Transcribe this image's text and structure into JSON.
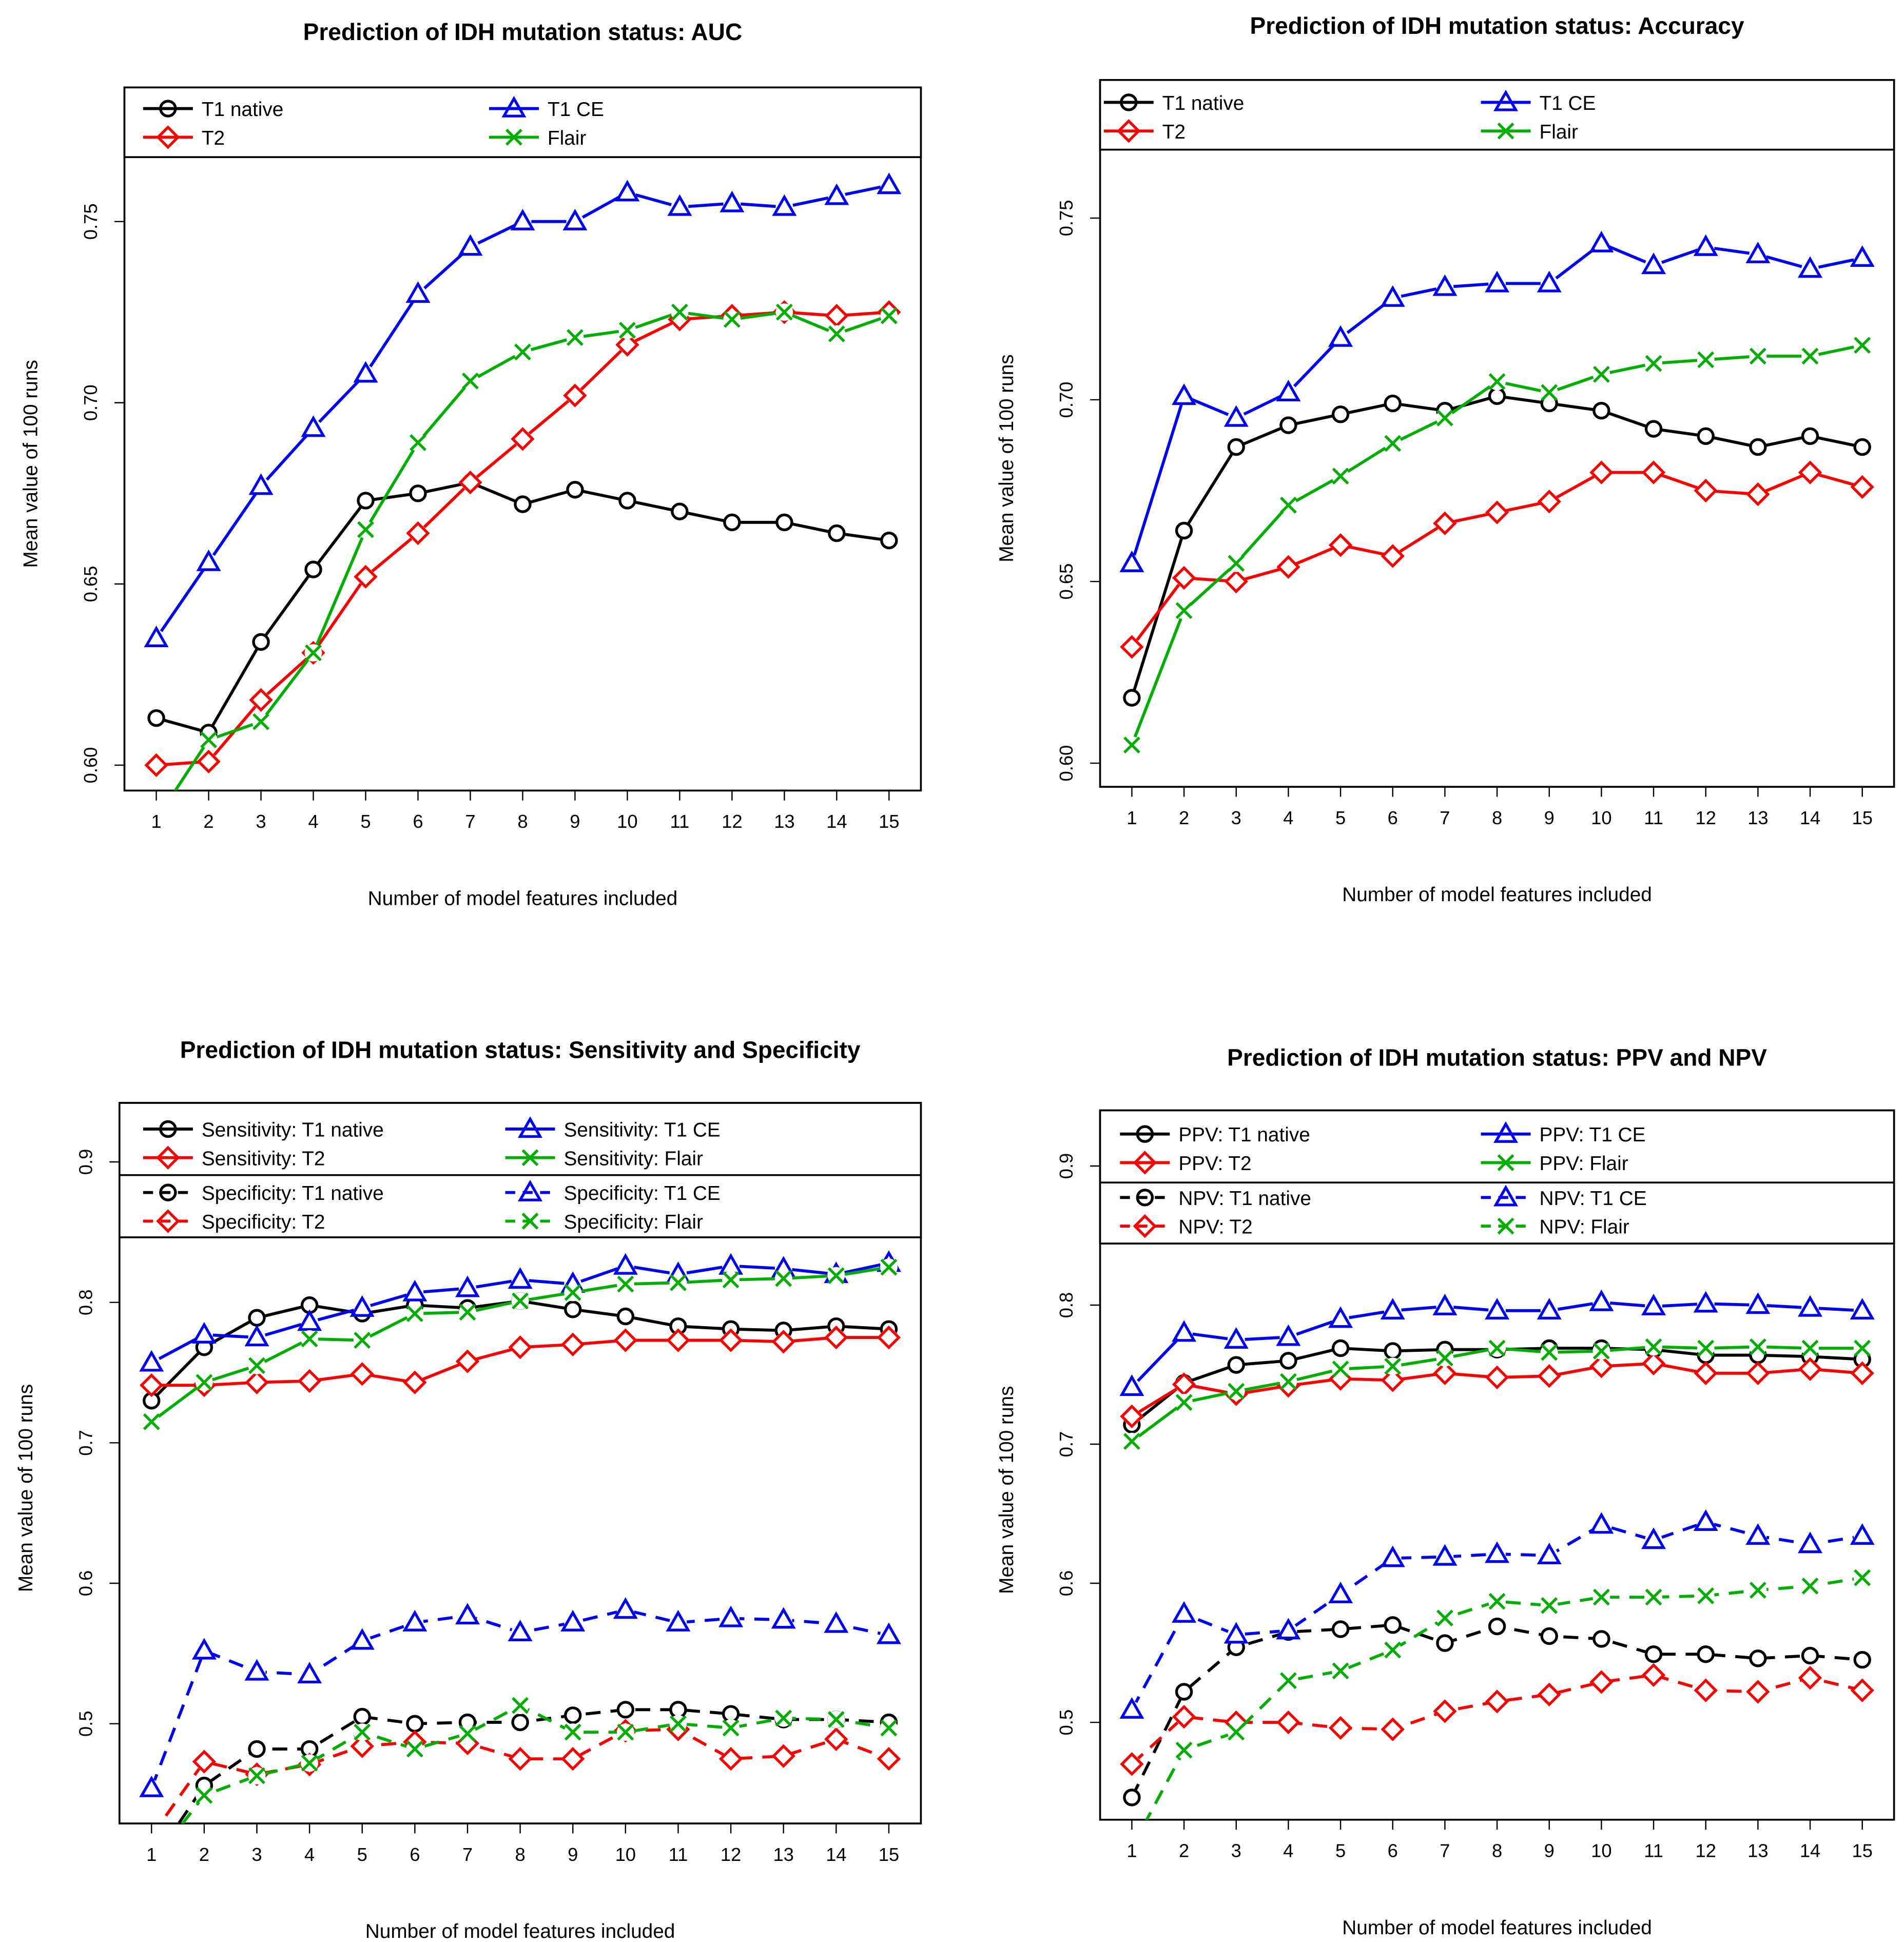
{
  "chart_data": [
    {
      "type": "line",
      "title": "Prediction of IDH mutation status: AUC",
      "xlabel": "Number of model features included",
      "ylabel": "Mean value of 100 runs",
      "x": [
        1,
        2,
        3,
        4,
        5,
        6,
        7,
        8,
        9,
        10,
        11,
        12,
        13,
        14,
        15
      ],
      "ylim": [
        0.593,
        0.787
      ],
      "yticks": [
        "0.60",
        "0.65",
        "0.70",
        "0.75"
      ],
      "grid": false,
      "legend_position": "top",
      "series": [
        {
          "name": "T1 native",
          "color": "#000000",
          "marker": "circle",
          "linestyle": "solid",
          "values": [
            0.613,
            0.609,
            0.634,
            0.654,
            0.673,
            0.675,
            0.678,
            0.672,
            0.676,
            0.673,
            0.67,
            0.667,
            0.667,
            0.664,
            0.662
          ]
        },
        {
          "name": "T2",
          "color": "#ff0000",
          "marker": "diamond",
          "linestyle": "solid",
          "values": [
            0.6,
            0.601,
            0.618,
            0.631,
            0.652,
            0.664,
            0.678,
            0.69,
            0.702,
            0.716,
            0.723,
            0.724,
            0.725,
            0.724,
            0.725
          ]
        },
        {
          "name": "T1 CE",
          "color": "#0000ff",
          "marker": "triangle",
          "linestyle": "solid",
          "values": [
            0.635,
            0.656,
            0.677,
            0.693,
            0.708,
            0.73,
            0.743,
            0.75,
            0.75,
            0.758,
            0.754,
            0.755,
            0.754,
            0.757,
            0.76
          ]
        },
        {
          "name": "Flair",
          "color": "#00b000",
          "marker": "x",
          "linestyle": "solid",
          "values": [
            0.585,
            0.607,
            0.612,
            0.631,
            0.665,
            0.689,
            0.706,
            0.714,
            0.718,
            0.72,
            0.725,
            0.723,
            0.725,
            0.719,
            0.724
          ]
        }
      ]
    },
    {
      "type": "line",
      "title": "Prediction of IDH mutation status: Accuracy",
      "xlabel": "Number of model features included",
      "ylabel": "Mean value of 100 runs",
      "x": [
        1,
        2,
        3,
        4,
        5,
        6,
        7,
        8,
        9,
        10,
        11,
        12,
        13,
        14,
        15
      ],
      "ylim": [
        0.5935,
        0.788
      ],
      "yticks": [
        "0.60",
        "0.65",
        "0.70",
        "0.75"
      ],
      "grid": false,
      "legend_position": "top",
      "series": [
        {
          "name": "T1 native",
          "color": "#000000",
          "marker": "circle",
          "linestyle": "solid",
          "values": [
            0.618,
            0.664,
            0.687,
            0.693,
            0.696,
            0.699,
            0.697,
            0.701,
            0.699,
            0.697,
            0.692,
            0.69,
            0.687,
            0.69,
            0.687
          ]
        },
        {
          "name": "T2",
          "color": "#ff0000",
          "marker": "diamond",
          "linestyle": "solid",
          "values": [
            0.632,
            0.651,
            0.65,
            0.654,
            0.66,
            0.657,
            0.666,
            0.669,
            0.672,
            0.68,
            0.68,
            0.675,
            0.674,
            0.68,
            0.676
          ]
        },
        {
          "name": "T1 CE",
          "color": "#0000ff",
          "marker": "triangle",
          "linestyle": "solid",
          "values": [
            0.655,
            0.701,
            0.695,
            0.702,
            0.717,
            0.728,
            0.731,
            0.732,
            0.732,
            0.743,
            0.737,
            0.742,
            0.74,
            0.736,
            0.739
          ]
        },
        {
          "name": "Flair",
          "color": "#00b000",
          "marker": "x",
          "linestyle": "solid",
          "values": [
            0.605,
            0.642,
            0.655,
            0.671,
            0.679,
            0.688,
            0.695,
            0.705,
            0.702,
            0.707,
            0.71,
            0.711,
            0.712,
            0.712,
            0.715
          ]
        }
      ]
    },
    {
      "type": "line",
      "title": "Prediction of IDH mutation status: Sensitivity and Specificity",
      "xlabel": "Number of model features included",
      "ylabel": "Mean value of 100 runs",
      "x": [
        1,
        2,
        3,
        4,
        5,
        6,
        7,
        8,
        9,
        10,
        11,
        12,
        13,
        14,
        15
      ],
      "ylim": [
        0.429,
        0.942
      ],
      "yticks": [
        "0.5",
        "0.6",
        "0.7",
        "0.8",
        "0.9"
      ],
      "grid": false,
      "legend_position": "top",
      "series": [
        {
          "name": "Sensitivity: T1 native",
          "color": "#000000",
          "marker": "circle",
          "linestyle": "solid",
          "values": [
            0.73,
            0.768,
            0.789,
            0.798,
            0.792,
            0.798,
            0.796,
            0.801,
            0.795,
            0.79,
            0.783,
            0.781,
            0.78,
            0.783,
            0.781
          ]
        },
        {
          "name": "Sensitivity: T2",
          "color": "#ff0000",
          "marker": "diamond",
          "linestyle": "solid",
          "values": [
            0.741,
            0.741,
            0.743,
            0.744,
            0.749,
            0.743,
            0.758,
            0.768,
            0.77,
            0.773,
            0.773,
            0.773,
            0.772,
            0.775,
            0.775
          ]
        },
        {
          "name": "Sensitivity: T1 CE",
          "color": "#0000ff",
          "marker": "triangle",
          "linestyle": "solid",
          "values": [
            0.757,
            0.777,
            0.775,
            0.786,
            0.796,
            0.807,
            0.81,
            0.816,
            0.813,
            0.826,
            0.82,
            0.826,
            0.824,
            0.82,
            0.828
          ]
        },
        {
          "name": "Sensitivity: Flair",
          "color": "#00b000",
          "marker": "x",
          "linestyle": "solid",
          "values": [
            0.715,
            0.743,
            0.755,
            0.774,
            0.773,
            0.792,
            0.793,
            0.801,
            0.807,
            0.813,
            0.814,
            0.816,
            0.817,
            0.819,
            0.825
          ]
        },
        {
          "name": "Specificity: T1 native",
          "color": "#000000",
          "marker": "circle",
          "linestyle": "dashed",
          "values": [
            0.4,
            0.456,
            0.482,
            0.482,
            0.505,
            0.5,
            0.501,
            0.501,
            0.506,
            0.51,
            0.51,
            0.507,
            0.503,
            0.503,
            0.501
          ]
        },
        {
          "name": "Specificity: T2",
          "color": "#ff0000",
          "marker": "diamond",
          "linestyle": "dashed",
          "values": [
            0.42,
            0.473,
            0.464,
            0.471,
            0.484,
            0.487,
            0.486,
            0.475,
            0.475,
            0.495,
            0.496,
            0.475,
            0.477,
            0.489,
            0.475
          ]
        },
        {
          "name": "Specificity: T1 CE",
          "color": "#0000ff",
          "marker": "triangle",
          "linestyle": "dashed",
          "values": [
            0.454,
            0.552,
            0.537,
            0.535,
            0.559,
            0.572,
            0.577,
            0.565,
            0.572,
            0.581,
            0.572,
            0.575,
            0.574,
            0.571,
            0.563
          ]
        },
        {
          "name": "Specificity: Flair",
          "color": "#00b000",
          "marker": "x",
          "linestyle": "dashed",
          "values": [
            0.4,
            0.449,
            0.463,
            0.472,
            0.494,
            0.482,
            0.493,
            0.513,
            0.494,
            0.494,
            0.5,
            0.497,
            0.504,
            0.503,
            0.497
          ]
        }
      ]
    },
    {
      "type": "line",
      "title": "Prediction of IDH mutation status: PPV and NPV",
      "xlabel": "Number of model features included",
      "ylabel": "Mean value of 100 runs",
      "x": [
        1,
        2,
        3,
        4,
        5,
        6,
        7,
        8,
        9,
        10,
        11,
        12,
        13,
        14,
        15
      ],
      "ylim": [
        0.43,
        0.94
      ],
      "yticks": [
        "0.5",
        "0.6",
        "0.7",
        "0.8",
        "0.9"
      ],
      "grid": false,
      "legend_position": "top",
      "series": [
        {
          "name": "PPV: T1 native",
          "color": "#000000",
          "marker": "circle",
          "linestyle": "solid",
          "values": [
            0.714,
            0.744,
            0.757,
            0.76,
            0.769,
            0.767,
            0.768,
            0.768,
            0.769,
            0.769,
            0.768,
            0.764,
            0.764,
            0.763,
            0.761
          ]
        },
        {
          "name": "PPV: T2",
          "color": "#ff0000",
          "marker": "diamond",
          "linestyle": "solid",
          "values": [
            0.72,
            0.743,
            0.736,
            0.742,
            0.747,
            0.746,
            0.751,
            0.748,
            0.749,
            0.756,
            0.758,
            0.751,
            0.751,
            0.754,
            0.751
          ]
        },
        {
          "name": "PPV: T1 CE",
          "color": "#0000ff",
          "marker": "triangle",
          "linestyle": "solid",
          "values": [
            0.741,
            0.78,
            0.775,
            0.777,
            0.79,
            0.796,
            0.799,
            0.796,
            0.796,
            0.802,
            0.799,
            0.801,
            0.8,
            0.798,
            0.796
          ]
        },
        {
          "name": "PPV: Flair",
          "color": "#00b000",
          "marker": "x",
          "linestyle": "solid",
          "values": [
            0.702,
            0.73,
            0.738,
            0.745,
            0.754,
            0.756,
            0.762,
            0.769,
            0.766,
            0.767,
            0.77,
            0.769,
            0.77,
            0.769,
            0.769
          ]
        },
        {
          "name": "NPV: T1 native",
          "color": "#000000",
          "marker": "circle",
          "linestyle": "dashed",
          "values": [
            0.446,
            0.522,
            0.554,
            0.565,
            0.567,
            0.57,
            0.557,
            0.569,
            0.562,
            0.56,
            0.549,
            0.549,
            0.546,
            0.548,
            0.545
          ]
        },
        {
          "name": "NPV: T2",
          "color": "#ff0000",
          "marker": "diamond",
          "linestyle": "dashed",
          "values": [
            0.47,
            0.504,
            0.5,
            0.5,
            0.496,
            0.495,
            0.508,
            0.515,
            0.52,
            0.529,
            0.534,
            0.523,
            0.522,
            0.532,
            0.523
          ]
        },
        {
          "name": "NPV: T1 CE",
          "color": "#0000ff",
          "marker": "triangle",
          "linestyle": "dashed",
          "values": [
            0.509,
            0.578,
            0.563,
            0.566,
            0.592,
            0.618,
            0.619,
            0.621,
            0.62,
            0.642,
            0.631,
            0.644,
            0.634,
            0.628,
            0.634
          ]
        },
        {
          "name": "NPV: Flair",
          "color": "#00b000",
          "marker": "x",
          "linestyle": "dashed",
          "values": [
            0.41,
            0.48,
            0.493,
            0.53,
            0.537,
            0.552,
            0.575,
            0.587,
            0.584,
            0.59,
            0.59,
            0.591,
            0.595,
            0.598,
            0.604
          ]
        }
      ]
    }
  ]
}
